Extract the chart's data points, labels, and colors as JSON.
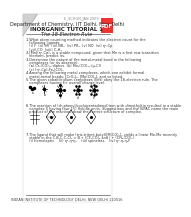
{
  "background_color": "#ffffff",
  "page_bg": "#f5f5f0",
  "text_color": "#222222",
  "gray_text": "#888888",
  "fold_color": "#cccccc",
  "pdf_color": "#cc2222",
  "title1": "Department of Chemistry, IIT Delhi, New Delhi",
  "title2": "INORGANIC TUTORIAL 1",
  "title3": "The 18-Electron Rule",
  "footer": "INDIAN INSTITUTE OF TECHNOLOGY DELHI, NEW DELHI 110016"
}
